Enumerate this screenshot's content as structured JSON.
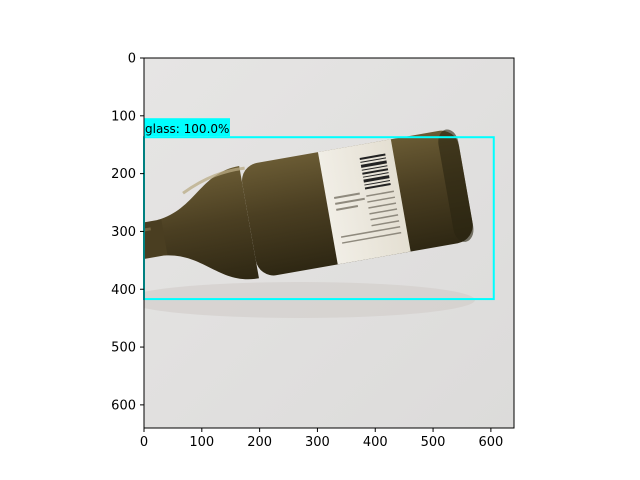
{
  "figure": {
    "x_ticks": [
      "0",
      "100",
      "200",
      "300",
      "400",
      "500",
      "600"
    ],
    "y_ticks": [
      "0",
      "100",
      "200",
      "300",
      "400",
      "500",
      "600"
    ],
    "image_extent": {
      "x": [
        0,
        640
      ],
      "y": [
        640,
        0
      ]
    }
  },
  "detection": {
    "label": "glass: 100.0%",
    "class": "glass",
    "confidence_percent": 100.0,
    "box": {
      "x_min": 0,
      "y_min": 137,
      "x_max": 605,
      "y_max": 417
    },
    "box_color": "#00FFFF"
  },
  "photo": {
    "subject": "olive-green wine bottle lying on its side with white label",
    "background_color": "#e3e2e1",
    "bottle_color": "#4d4124"
  }
}
